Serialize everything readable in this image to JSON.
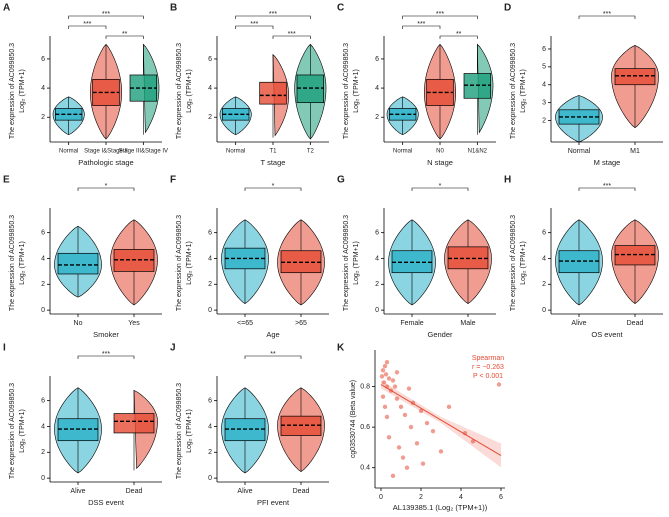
{
  "chart_data": [
    {
      "type": "violin",
      "letter": "A",
      "ylabel": [
        "The expression of AC099850.3",
        "Log₂ (TPM+1)"
      ],
      "xlabel": "Pathologic stage",
      "categories": [
        "Normal",
        "Stage I&Stage II",
        "Stage III&Stage IV"
      ],
      "colors": [
        "#2bb0c8",
        "#e64b35",
        "#1b9e7a"
      ],
      "min": [
        0.8,
        0.5,
        0.8
      ],
      "q1": [
        1.8,
        2.8,
        3.1
      ],
      "median": [
        2.2,
        3.7,
        4.0
      ],
      "q3": [
        2.6,
        4.6,
        4.9
      ],
      "max": [
        3.4,
        7.0,
        7.0
      ],
      "ylim": [
        0.3,
        7.3
      ],
      "yticks": [
        2,
        4,
        6
      ],
      "comparisons": [
        {
          "groups": [
            0,
            2
          ],
          "label": "***"
        },
        {
          "groups": [
            0,
            1
          ],
          "label": "***"
        },
        {
          "groups": [
            1,
            2
          ],
          "label": "**"
        }
      ]
    },
    {
      "type": "violin",
      "letter": "B",
      "ylabel": [
        "The expression of AC099850.3",
        "Log₂ (TPM+1)"
      ],
      "xlabel": "T stage",
      "categories": [
        "Normal",
        "T1",
        "T2"
      ],
      "colors": [
        "#2bb0c8",
        "#e64b35",
        "#1b9e7a"
      ],
      "min": [
        0.8,
        0.6,
        0.5
      ],
      "q1": [
        1.8,
        2.9,
        3.0
      ],
      "median": [
        2.2,
        3.5,
        4.0
      ],
      "q3": [
        2.6,
        4.4,
        4.9
      ],
      "max": [
        3.4,
        6.3,
        7.0
      ],
      "ylim": [
        0.3,
        7.3
      ],
      "yticks": [
        2,
        4,
        6
      ],
      "comparisons": [
        {
          "groups": [
            0,
            2
          ],
          "label": "***"
        },
        {
          "groups": [
            0,
            1
          ],
          "label": "***"
        },
        {
          "groups": [
            1,
            2
          ],
          "label": "***"
        }
      ]
    },
    {
      "type": "violin",
      "letter": "C",
      "ylabel": [
        "The expression of AC099850.3",
        "Log₂ (TPM+1)"
      ],
      "xlabel": "N stage",
      "categories": [
        "Normal",
        "N0",
        "N1&N2"
      ],
      "colors": [
        "#2bb0c8",
        "#e64b35",
        "#1b9e7a"
      ],
      "min": [
        0.8,
        0.5,
        0.8
      ],
      "q1": [
        1.8,
        2.8,
        3.3
      ],
      "median": [
        2.2,
        3.7,
        4.2
      ],
      "q3": [
        2.6,
        4.6,
        5.0
      ],
      "max": [
        3.4,
        7.0,
        7.0
      ],
      "ylim": [
        0.3,
        7.3
      ],
      "yticks": [
        2,
        4,
        6
      ],
      "comparisons": [
        {
          "groups": [
            0,
            2
          ],
          "label": "***"
        },
        {
          "groups": [
            0,
            1
          ],
          "label": "***"
        },
        {
          "groups": [
            1,
            2
          ],
          "label": "**"
        }
      ]
    },
    {
      "type": "violin",
      "letter": "D",
      "ylabel": [
        "The expression of AC099850.3",
        "Log₂ (TPM+1)"
      ],
      "xlabel": "M stage",
      "categories": [
        "Normal",
        "M1"
      ],
      "colors": [
        "#2bb0c8",
        "#e64b35"
      ],
      "min": [
        0.8,
        1.6
      ],
      "q1": [
        1.8,
        4.0
      ],
      "median": [
        2.2,
        4.5
      ],
      "q3": [
        2.6,
        4.9
      ],
      "max": [
        3.4,
        6.2
      ],
      "ylim": [
        0.8,
        6.5
      ],
      "yticks": [
        2,
        3,
        4,
        5,
        6
      ],
      "comparisons": [
        {
          "groups": [
            0,
            1
          ],
          "label": "***"
        }
      ]
    },
    {
      "type": "violin",
      "letter": "E",
      "ylabel": [
        "The expression of AC099850.3",
        "Log₂ (TPM+1)"
      ],
      "xlabel": "Smoker",
      "categories": [
        "No",
        "Yes"
      ],
      "colors": [
        "#2bb0c8",
        "#e64b35"
      ],
      "min": [
        1.0,
        0.4
      ],
      "q1": [
        2.8,
        3.0
      ],
      "median": [
        3.5,
        3.9
      ],
      "q3": [
        4.4,
        4.7
      ],
      "max": [
        6.5,
        7.0
      ],
      "ylim": [
        -0.3,
        7.6
      ],
      "yticks": [
        0,
        2,
        4,
        6
      ],
      "comparisons": [
        {
          "groups": [
            0,
            1
          ],
          "label": "*"
        }
      ]
    },
    {
      "type": "violin",
      "letter": "F",
      "ylabel": [
        "The expression of AC099850.3",
        "Log₂ (TPM+1)"
      ],
      "xlabel": "Age",
      "categories": [
        "<=65",
        ">65"
      ],
      "colors": [
        "#2bb0c8",
        "#e64b35"
      ],
      "min": [
        0.5,
        0.4
      ],
      "q1": [
        3.2,
        2.9
      ],
      "median": [
        4.0,
        3.7
      ],
      "q3": [
        4.8,
        4.6
      ],
      "max": [
        7.0,
        7.0
      ],
      "ylim": [
        -0.3,
        7.6
      ],
      "yticks": [
        0,
        2,
        4,
        6
      ],
      "comparisons": [
        {
          "groups": [
            0,
            1
          ],
          "label": "*"
        }
      ]
    },
    {
      "type": "violin",
      "letter": "G",
      "ylabel": [
        "The expression of AC099850.3",
        "Log₂ (TPM+1)"
      ],
      "xlabel": "Gender",
      "categories": [
        "Female",
        "Male"
      ],
      "colors": [
        "#2bb0c8",
        "#e64b35"
      ],
      "min": [
        0.4,
        0.5
      ],
      "q1": [
        2.9,
        3.2
      ],
      "median": [
        3.7,
        4.0
      ],
      "q3": [
        4.6,
        4.9
      ],
      "max": [
        7.0,
        7.0
      ],
      "ylim": [
        -0.3,
        7.6
      ],
      "yticks": [
        0,
        2,
        4,
        6
      ],
      "comparisons": [
        {
          "groups": [
            0,
            1
          ],
          "label": "*"
        }
      ]
    },
    {
      "type": "violin",
      "letter": "H",
      "ylabel": [
        "The expression of AC099850.3",
        "Log₂ (TPM+1)"
      ],
      "xlabel": "OS event",
      "categories": [
        "Alive",
        "Dead"
      ],
      "colors": [
        "#2bb0c8",
        "#e64b35"
      ],
      "min": [
        0.4,
        0.5
      ],
      "q1": [
        2.9,
        3.5
      ],
      "median": [
        3.8,
        4.3
      ],
      "q3": [
        4.6,
        5.0
      ],
      "max": [
        7.0,
        7.0
      ],
      "ylim": [
        -0.3,
        7.6
      ],
      "yticks": [
        0,
        2,
        4,
        6
      ],
      "comparisons": [
        {
          "groups": [
            0,
            1
          ],
          "label": "***"
        }
      ]
    },
    {
      "type": "violin",
      "letter": "I",
      "ylabel": [
        "The expression of AC099850.3",
        "Log₂ (TPM+1)"
      ],
      "xlabel": "DSS event",
      "categories": [
        "Alive",
        "Dead"
      ],
      "colors": [
        "#2bb0c8",
        "#e64b35"
      ],
      "min": [
        0.4,
        0.6
      ],
      "q1": [
        2.9,
        3.5
      ],
      "median": [
        3.8,
        4.4
      ],
      "q3": [
        4.6,
        5.0
      ],
      "max": [
        7.0,
        6.8
      ],
      "ylim": [
        -0.3,
        7.6
      ],
      "yticks": [
        0,
        2,
        4,
        6
      ],
      "comparisons": [
        {
          "groups": [
            0,
            1
          ],
          "label": "***"
        }
      ]
    },
    {
      "type": "violin",
      "letter": "J",
      "ylabel": [
        "The expression of AC099850.3",
        "Log₂ (TPM+1)"
      ],
      "xlabel": "PFI event",
      "categories": [
        "Alive",
        "Dead"
      ],
      "colors": [
        "#2bb0c8",
        "#e64b35"
      ],
      "min": [
        0.4,
        0.5
      ],
      "q1": [
        2.9,
        3.3
      ],
      "median": [
        3.8,
        4.1
      ],
      "q3": [
        4.6,
        4.8
      ],
      "max": [
        7.0,
        7.0
      ],
      "ylim": [
        -0.3,
        7.6
      ],
      "yticks": [
        0,
        2,
        4,
        6
      ],
      "comparisons": [
        {
          "groups": [
            0,
            1
          ],
          "label": "**"
        }
      ]
    },
    {
      "type": "scatter",
      "letter": "K",
      "ylabel": "cg03530744 (Beta value)",
      "xlabel": "AL139385.1 (Log₂ (TPM+1))",
      "color": "#e64b35",
      "annotation": [
        "Spearman",
        "r = −0.263",
        "P < 0.001"
      ],
      "x": [
        0.05,
        0.1,
        0.15,
        0.2,
        0.25,
        0.3,
        0.4,
        0.5,
        0.1,
        0.2,
        0.3,
        0.6,
        0.7,
        0.8,
        1.0,
        1.2,
        1.5,
        0.4,
        0.9,
        1.1,
        1.6,
        2.0,
        2.3,
        2.6,
        3.0,
        3.4,
        1.3,
        0.6,
        1.8,
        4.2,
        4.6,
        5.9,
        0.3,
        0.8,
        2.1,
        1.4
      ],
      "y": [
        0.85,
        0.88,
        0.82,
        0.9,
        0.86,
        0.8,
        0.84,
        0.78,
        0.75,
        0.7,
        0.92,
        0.83,
        0.8,
        0.74,
        0.7,
        0.66,
        0.6,
        0.55,
        0.5,
        0.45,
        0.72,
        0.68,
        0.62,
        0.58,
        0.48,
        0.7,
        0.4,
        0.36,
        0.52,
        0.57,
        0.53,
        0.81,
        0.65,
        0.87,
        0.42,
        0.79
      ],
      "fit": {
        "x": [
          0,
          6
        ],
        "y": [
          0.81,
          0.46
        ]
      },
      "xlim": [
        -0.3,
        6.2
      ],
      "xticks": [
        0,
        2,
        4,
        6
      ],
      "ylim": [
        0.3,
        0.98
      ],
      "yticks": [
        0.4,
        0.6,
        0.8
      ]
    }
  ]
}
